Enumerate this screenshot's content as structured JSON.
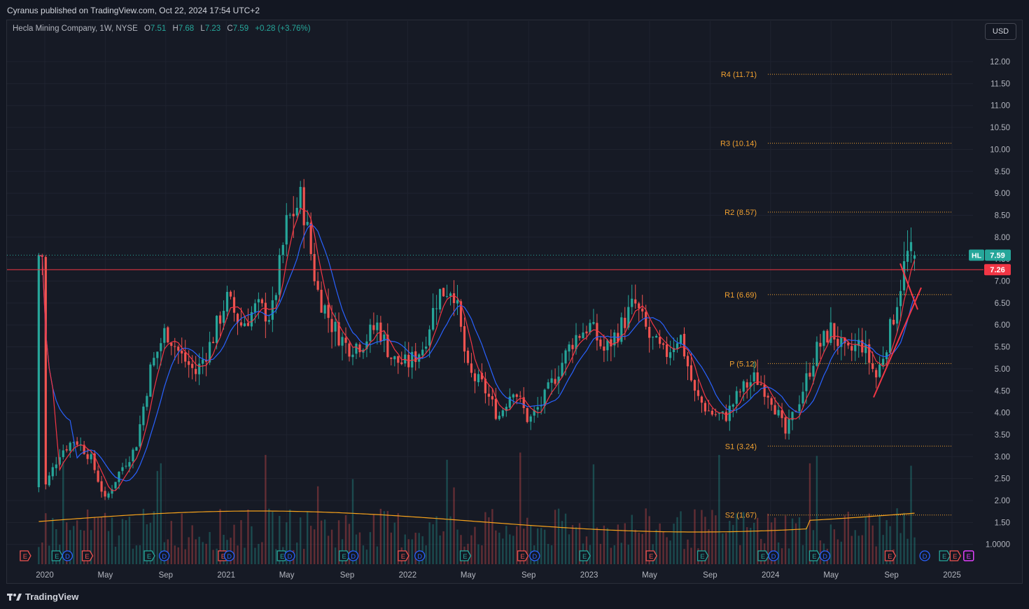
{
  "header": {
    "publisher": "Cyranus published on TradingView.com, Oct 22, 2024 17:54 UTC+2"
  },
  "legend": {
    "symbol": "Hecla Mining Company, 1W, NYSE",
    "o_label": "O",
    "o": "7.51",
    "h_label": "H",
    "h": "7.68",
    "l_label": "L",
    "l": "7.23",
    "c_label": "C",
    "c": "7.59",
    "change": "+0.28 (+3.76%)"
  },
  "currency": "USD",
  "footer": {
    "brand": "TradingView"
  },
  "chart_data": {
    "type": "candlestick",
    "symbol": "HL",
    "interval": "1W",
    "exchange": "NYSE",
    "x_ticks": [
      "2020",
      "May",
      "Sep",
      "2021",
      "May",
      "Sep",
      "2022",
      "May",
      "Sep",
      "2023",
      "May",
      "Sep",
      "2024",
      "May",
      "Sep",
      "2025"
    ],
    "y_ticks": [
      "12.00",
      "11.50",
      "11.00",
      "10.50",
      "10.00",
      "9.50",
      "9.00",
      "8.50",
      "8.00",
      "7.50",
      "7.00",
      "6.50",
      "6.00",
      "5.50",
      "5.00",
      "4.50",
      "4.00",
      "3.50",
      "3.00",
      "2.50",
      "2.00",
      "1.50",
      "1.0000"
    ],
    "ylim": [
      0.85,
      12.35
    ],
    "last_price": {
      "ticker": "HL",
      "value": "7.59",
      "color": "#26a69a"
    },
    "horizontal_line": {
      "value": "7.26",
      "color": "#f23645"
    },
    "pivots": [
      {
        "label": "R4 (11.71)",
        "value": 11.71
      },
      {
        "label": "R3 (10.14)",
        "value": 10.14
      },
      {
        "label": "R2 (8.57)",
        "value": 8.57
      },
      {
        "label": "R1 (6.69)",
        "value": 6.69
      },
      {
        "label": "P (5.12)",
        "value": 5.12
      },
      {
        "label": "S1 (3.24)",
        "value": 3.24
      },
      {
        "label": "S2 (1.67)",
        "value": 1.67
      }
    ],
    "pivot_color": "#f0a030",
    "price_path": [
      [
        "2020-01",
        2.3
      ],
      [
        "2020-02",
        3.1
      ],
      [
        "2020-03",
        3.4
      ],
      [
        "2020-04",
        3.0
      ],
      [
        "2020-05",
        2.0
      ],
      [
        "2020-06",
        2.7
      ],
      [
        "2020-07",
        3.2
      ],
      [
        "2020-08",
        5.0
      ],
      [
        "2020-09",
        5.9
      ],
      [
        "2020-10",
        5.3
      ],
      [
        "2020-11",
        4.9
      ],
      [
        "2020-12",
        5.6
      ],
      [
        "2021-01",
        6.6
      ],
      [
        "2021-02",
        6.0
      ],
      [
        "2021-03",
        6.4
      ],
      [
        "2021-04",
        6.2
      ],
      [
        "2021-05",
        8.3
      ],
      [
        "2021-06",
        8.9
      ],
      [
        "2021-07",
        6.8
      ],
      [
        "2021-08",
        6.0
      ],
      [
        "2021-09",
        5.5
      ],
      [
        "2021-10",
        5.6
      ],
      [
        "2021-11",
        6.0
      ],
      [
        "2021-12",
        5.2
      ],
      [
        "2022-01",
        5.1
      ],
      [
        "2022-02",
        5.5
      ],
      [
        "2022-03",
        6.7
      ],
      [
        "2022-04",
        6.9
      ],
      [
        "2022-05",
        4.9
      ],
      [
        "2022-06",
        4.6
      ],
      [
        "2022-07",
        3.9
      ],
      [
        "2022-08",
        4.6
      ],
      [
        "2022-09",
        3.8
      ],
      [
        "2022-10",
        4.3
      ],
      [
        "2022-11",
        5.0
      ],
      [
        "2022-12",
        5.7
      ],
      [
        "2023-01",
        6.0
      ],
      [
        "2023-02",
        5.4
      ],
      [
        "2023-03",
        5.9
      ],
      [
        "2023-04",
        6.5
      ],
      [
        "2023-05",
        5.7
      ],
      [
        "2023-06",
        5.3
      ],
      [
        "2023-07",
        5.8
      ],
      [
        "2023-08",
        4.4
      ],
      [
        "2023-09",
        4.0
      ],
      [
        "2023-10",
        3.9
      ],
      [
        "2023-11",
        4.5
      ],
      [
        "2023-12",
        4.8
      ],
      [
        "2024-01",
        4.4
      ],
      [
        "2024-02",
        3.5
      ],
      [
        "2024-03",
        4.4
      ],
      [
        "2024-04",
        5.4
      ],
      [
        "2024-05",
        5.9
      ],
      [
        "2024-06",
        5.3
      ],
      [
        "2024-07",
        5.6
      ],
      [
        "2024-08",
        4.8
      ],
      [
        "2024-09",
        6.0
      ],
      [
        "2024-10",
        7.59
      ]
    ],
    "colors": {
      "up": "#26a69a",
      "down": "#ef5350",
      "ma_fast": "#f23645",
      "ma_slow": "#2962ff",
      "volume_ma": "#f7a21b",
      "trendline": "#f23645"
    },
    "event_markers": [
      "E",
      "D"
    ]
  }
}
